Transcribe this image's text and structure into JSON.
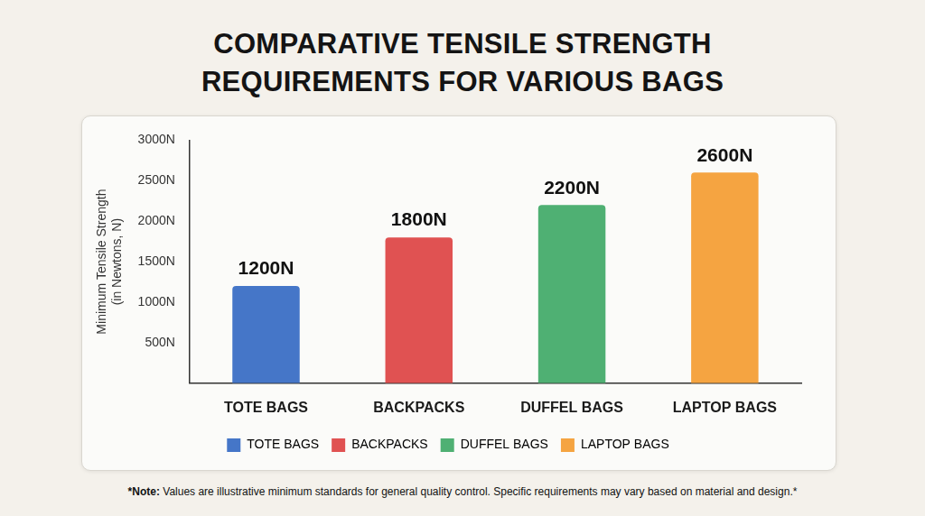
{
  "chart_data": {
    "type": "bar",
    "title": "COMPARATIVE TENSILE STRENGTH REQUIREMENTS FOR VARIOUS BAGS",
    "y_label": "Minimum Tensile Strength (in Newtons, N)",
    "categories": [
      "TOTE BAGS",
      "BACKPACKS",
      "DUFFEL BAGS",
      "LAPTOP BAGS"
    ],
    "values": [
      1200,
      1800,
      2200,
      2600
    ],
    "value_labels": [
      "1200N",
      "1800N",
      "2200N",
      "2600N"
    ],
    "colors": [
      "#4576c8",
      "#e05252",
      "#4fb073",
      "#f5a441"
    ],
    "ylim": [
      0,
      3000
    ],
    "yticks": [
      {
        "value": 500,
        "label": "500N"
      },
      {
        "value": 1000,
        "label": "1000N"
      },
      {
        "value": 1500,
        "label": "1500N"
      },
      {
        "value": 2000,
        "label": "2000N"
      },
      {
        "value": 2500,
        "label": "2500N"
      },
      {
        "value": 3000,
        "label": "3000N"
      }
    ],
    "grid": false,
    "legend": "bottom",
    "data_labels": true,
    "note": "*Note: Values are illustrative minimum standards for general quality control. Specific requirements may vary based on material and design.*"
  }
}
